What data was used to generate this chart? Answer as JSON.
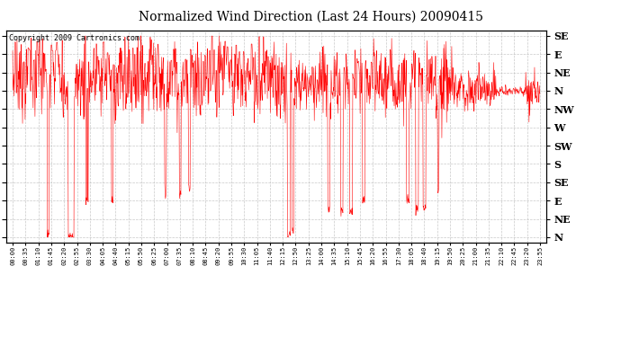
{
  "title": "Normalized Wind Direction (Last 24 Hours) 20090415",
  "copyright_text": "Copyright 2009 Cartronics.com",
  "line_color": "#FF0000",
  "bg_color": "#FFFFFF",
  "plot_bg_color": "#FFFFFF",
  "grid_color": "#BBBBBB",
  "ytick_labels": [
    "SE",
    "E",
    "NE",
    "N",
    "NW",
    "W",
    "SW",
    "S",
    "SE",
    "E",
    "NE",
    "N"
  ],
  "ytick_values": [
    11,
    10,
    9,
    8,
    7,
    6,
    5,
    4,
    3,
    2,
    1,
    0
  ],
  "ylim": [
    -0.3,
    11.3
  ],
  "xtick_labels": [
    "00:00",
    "00:35",
    "01:10",
    "01:45",
    "02:20",
    "02:55",
    "03:30",
    "04:05",
    "04:40",
    "05:15",
    "05:50",
    "06:25",
    "07:00",
    "07:35",
    "08:10",
    "08:45",
    "09:20",
    "09:55",
    "10:30",
    "11:05",
    "11:40",
    "12:15",
    "12:50",
    "13:25",
    "14:00",
    "14:35",
    "15:10",
    "15:45",
    "16:20",
    "16:55",
    "17:30",
    "18:05",
    "18:40",
    "19:15",
    "19:50",
    "20:25",
    "21:00",
    "21:35",
    "22:10",
    "22:45",
    "23:20",
    "23:55"
  ],
  "title_fontsize": 10,
  "copyright_fontsize": 6,
  "xtick_fontsize": 5,
  "ytick_fontsize": 8
}
